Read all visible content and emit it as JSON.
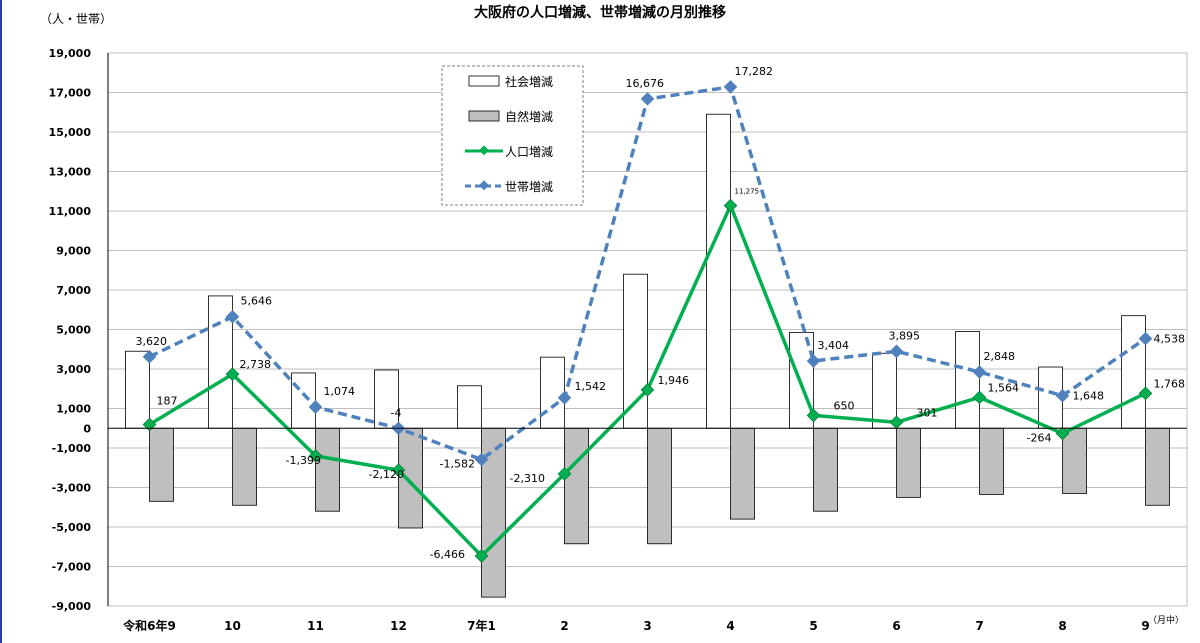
{
  "chart_data": {
    "type": "bar",
    "title": "大阪府の人口増減、世帯増減の月別推移",
    "y_unit_label": "（人・世帯）",
    "x_unit_label": "（月中）",
    "categories": [
      "令和6年9",
      "10",
      "11",
      "12",
      "7年1",
      "2",
      "3",
      "4",
      "5",
      "6",
      "7",
      "8",
      "9"
    ],
    "ylim": [
      -9000,
      19000
    ],
    "y_ticks": [
      "19,000",
      "17,000",
      "15,000",
      "13,000",
      "11,000",
      "9,000",
      "7,000",
      "5,000",
      "3,000",
      "1,000",
      "0",
      "-1,000",
      "-3,000",
      "-5,000",
      "-7,000",
      "-9,000"
    ],
    "y_tick_values": [
      19000,
      17000,
      15000,
      13000,
      11000,
      9000,
      7000,
      5000,
      3000,
      1000,
      0,
      -1000,
      -3000,
      -5000,
      -7000,
      -9000
    ],
    "grid": true,
    "legend_position": "top-center",
    "series": [
      {
        "name": "社会増減",
        "type": "bar",
        "color": "#ffffff",
        "values": [
          3900,
          6700,
          2800,
          2950,
          2150,
          3600,
          7800,
          15900,
          4850,
          3800,
          4900,
          3100,
          5700
        ]
      },
      {
        "name": "自然増減",
        "type": "bar",
        "color": "#bfbfbf",
        "values": [
          -3700,
          -3900,
          -4200,
          -5050,
          -8550,
          -5850,
          -5850,
          -4600,
          -4200,
          -3500,
          -3350,
          -3300,
          -3900
        ]
      },
      {
        "name": "人口増減",
        "type": "line",
        "color": "#00b050",
        "values": [
          187,
          2738,
          -1399,
          -2120,
          -6466,
          -2310,
          1946,
          11275,
          650,
          301,
          1564,
          -264,
          1768
        ],
        "labels": [
          "187",
          "2,738",
          "-1,399",
          "-2,120",
          "-6,466",
          "-2,310",
          "1,946",
          "11,275",
          "650",
          "301",
          "1,564",
          "-264",
          "1,768"
        ]
      },
      {
        "name": "世帯増減",
        "type": "line",
        "style": "dashed",
        "color": "#4f81bd",
        "values": [
          3620,
          5646,
          1074,
          -4,
          -1582,
          1542,
          16676,
          17282,
          3404,
          3895,
          2848,
          1648,
          4538
        ],
        "labels": [
          "3,620",
          "5,646",
          "1,074",
          "-4",
          "-1,582",
          "1,542",
          "16,676",
          "17,282",
          "3,404",
          "3,895",
          "2,848",
          "1,648",
          "4,538"
        ]
      }
    ]
  }
}
